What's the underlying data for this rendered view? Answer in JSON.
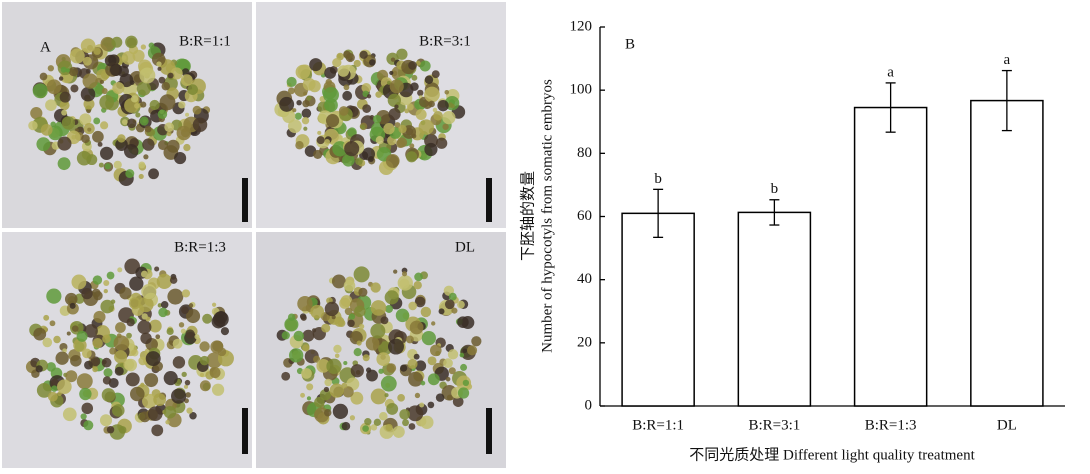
{
  "photo_panel": {
    "label": "A",
    "quadrants": [
      "B:R=1:1",
      "B:R=3:1",
      "B:R=1:3",
      "DL"
    ]
  },
  "chart_data": {
    "type": "bar",
    "panel_label": "B",
    "y_label": [
      "下胚轴的数量",
      "Number of hypocotyls from somatic embryos"
    ],
    "x_label": "不同光质处理 Different light quality treatment",
    "categories": [
      "B:R=1:1",
      "B:R=3:1",
      "B:R=1:3",
      "DL"
    ],
    "values": [
      61,
      61.3,
      94.5,
      96.7
    ],
    "errors": [
      7.6,
      4,
      7.8,
      9.5
    ],
    "letters": [
      "b",
      "b",
      "a",
      "a"
    ],
    "color": "#ffffff",
    "ylim": [
      0,
      120
    ],
    "yticks": [
      0,
      20,
      40,
      60,
      80,
      100,
      120
    ]
  }
}
